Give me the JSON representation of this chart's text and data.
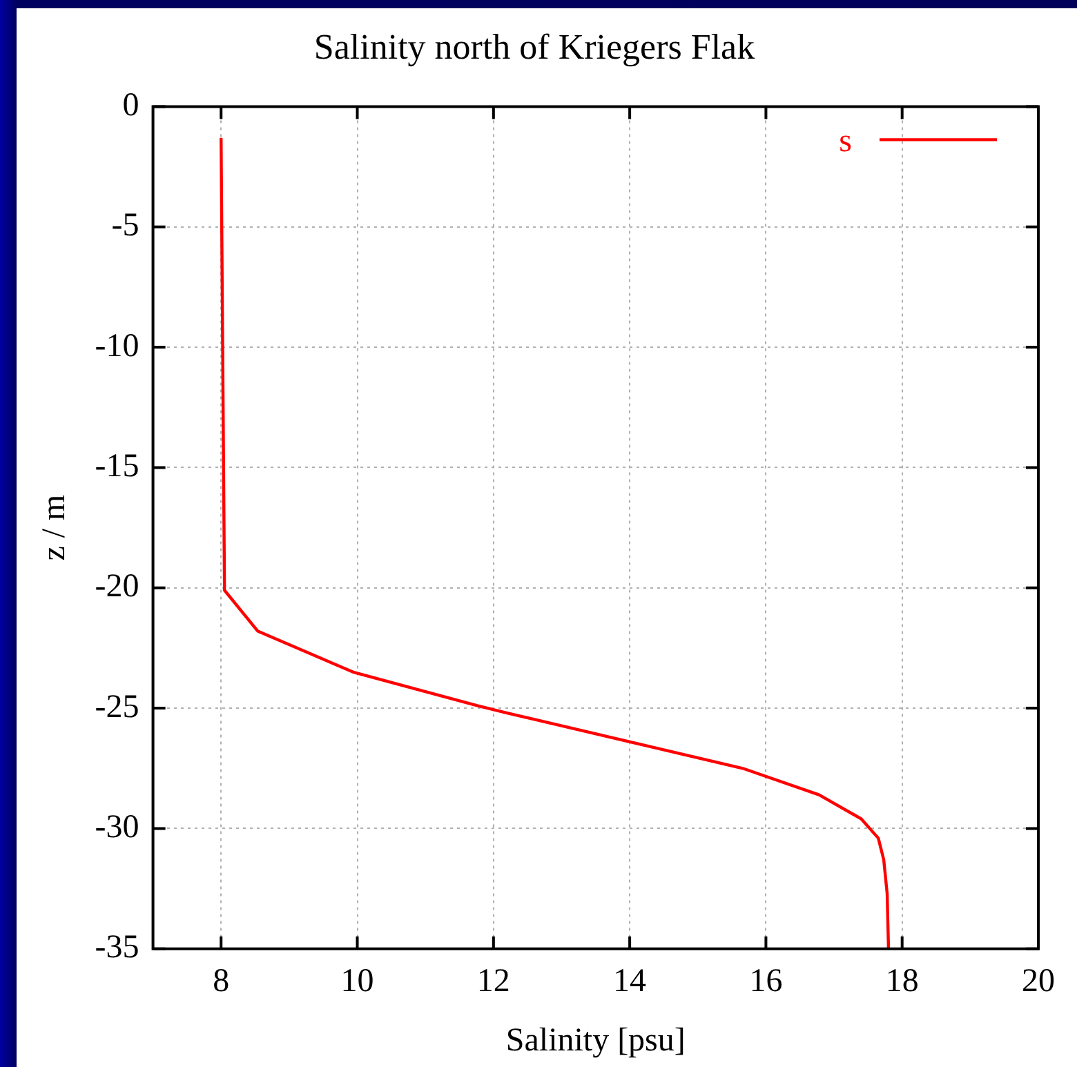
{
  "chart_data": {
    "type": "line",
    "title": "Salinity north of Kriegers Flak",
    "xlabel": "Salinity [psu]",
    "ylabel": "z / m",
    "xlim": [
      7,
      20
    ],
    "xticks": [
      8,
      10,
      12,
      14,
      16,
      18,
      20
    ],
    "ylim": [
      -35,
      0
    ],
    "yticks": [
      0,
      -5,
      -10,
      -15,
      -20,
      -25,
      -30,
      -35
    ],
    "grid": true,
    "legend": "top right",
    "marker": "none",
    "line_style": "solid",
    "series": [
      {
        "name": "s",
        "color": "#ff0000",
        "x": [
          8.0,
          8.05,
          8.54,
          9.94,
          11.77,
          12.2,
          15.66,
          16.78,
          17.4,
          17.65,
          17.73,
          17.78,
          17.8
        ],
        "values": [
          -1.3,
          -20.1,
          -21.8,
          -23.5,
          -24.9,
          -25.2,
          -27.5,
          -28.6,
          -29.6,
          -30.4,
          -31.3,
          -32.7,
          -35
        ]
      }
    ]
  }
}
